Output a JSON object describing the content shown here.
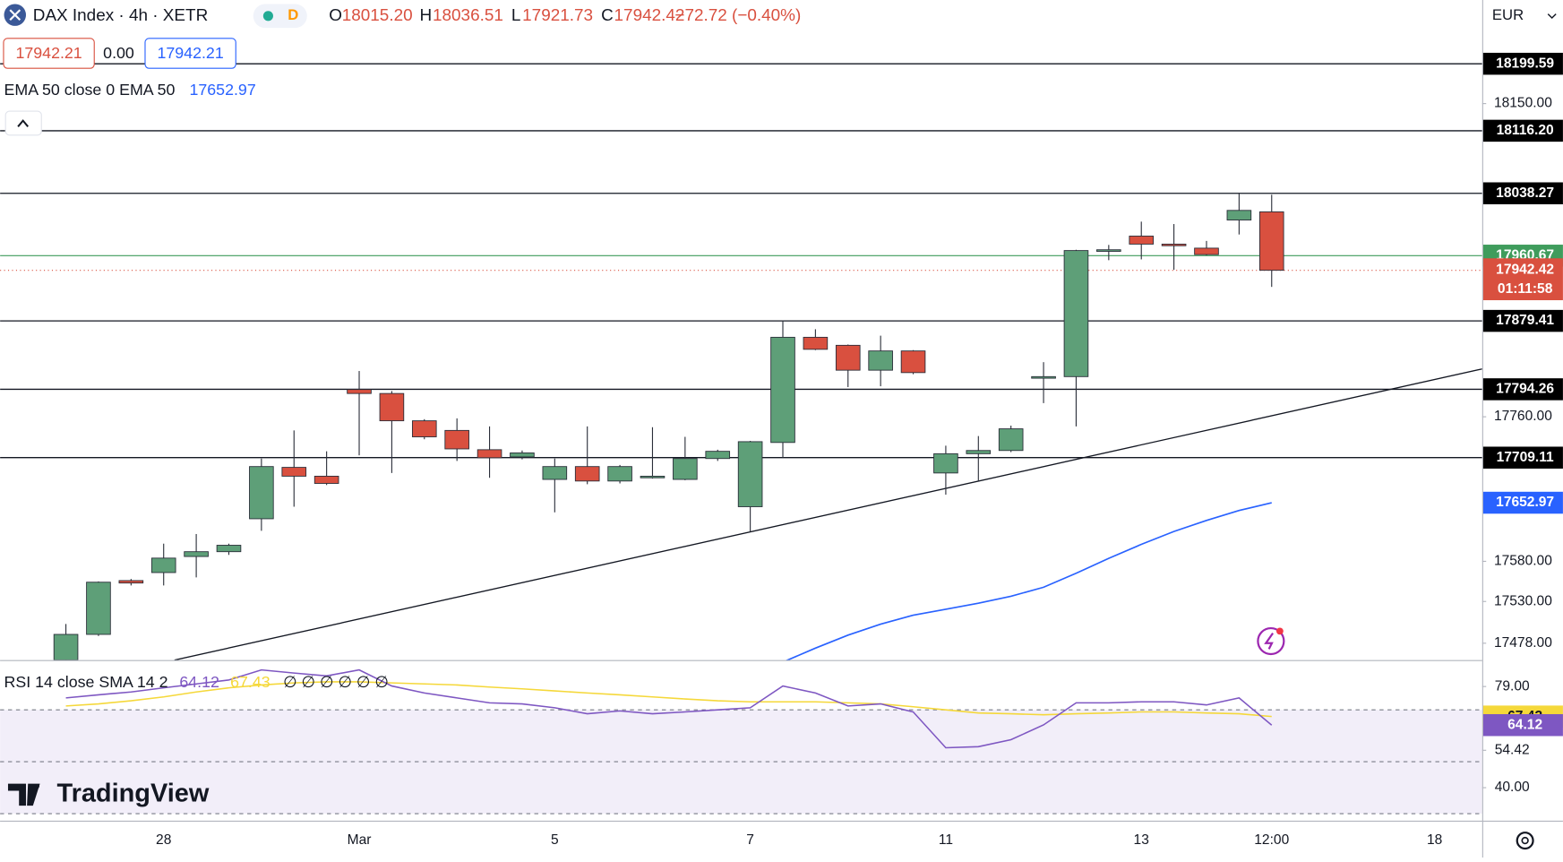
{
  "header": {
    "symbol": "DAX Index · 4h · XETR",
    "badge": "D",
    "ohlc": [
      {
        "label": "O",
        "value": "18015.20"
      },
      {
        "label": "H",
        "value": "18036.51"
      },
      {
        "label": "L",
        "value": "17921.73"
      },
      {
        "label": "C",
        "value": "17942.42"
      }
    ],
    "change": "−72.72 (−0.40%)",
    "sell": "17942.21",
    "spread": "0.00",
    "buy": "17942.21",
    "currency": "EUR",
    "logo": "TradingView"
  },
  "chart_data": [
    {
      "type": "candlestick",
      "up_color": "#5e9f78",
      "down_color": "#d9503f",
      "wick_color": "#2a2e39",
      "open": [
        17457,
        17489,
        17556,
        17566,
        17586,
        17592,
        17633,
        17697,
        17686,
        17794,
        17789,
        17755,
        17743,
        17719,
        17710,
        17682,
        17698,
        17680,
        17684,
        17682,
        17708,
        17648,
        17728,
        17859,
        17849,
        17818,
        17842,
        17690,
        17714,
        17718,
        17808,
        17810,
        17966,
        17985,
        17975,
        17970,
        18005,
        18015.2
      ],
      "high": [
        17502,
        17555,
        17558,
        17602,
        17614,
        17602,
        17708,
        17743,
        17717,
        17817,
        17792,
        17757,
        17758,
        17748,
        17718,
        17708,
        17748,
        17700,
        17747,
        17735,
        17719,
        17730,
        17880,
        17869,
        17850,
        17861,
        17843,
        17724,
        17736,
        17749,
        17828,
        17968,
        17974,
        18003,
        18000,
        17979,
        18039,
        18036.51
      ],
      "low": [
        17445,
        17487,
        17550,
        17550,
        17560,
        17588,
        17618,
        17648,
        17675,
        17712,
        17690,
        17732,
        17705,
        17684,
        17707,
        17641,
        17676,
        17677,
        17683,
        17681,
        17705,
        17617,
        17709,
        17843,
        17797,
        17798,
        17813,
        17663,
        17680,
        17716,
        17777,
        17748,
        17955,
        17956,
        17943,
        17961,
        17987,
        17921.73
      ],
      "close": [
        17489,
        17554,
        17553,
        17584,
        17592,
        17600,
        17698,
        17686,
        17677,
        17789,
        17755,
        17735,
        17720,
        17709,
        17715,
        17698,
        17680,
        17698,
        17686,
        17708,
        17717,
        17729,
        17859,
        17844,
        17818,
        17842,
        17815,
        17714,
        17718,
        17745,
        17810,
        17967,
        17968,
        17975,
        17973,
        17962,
        18017,
        17942.42
      ],
      "countdown": "01:11:58",
      "line_level": 17960.67,
      "line_level_color": "#3f9c5c",
      "levels": [
        18199.59,
        {
          "value": 18116.2,
          "label": "18116.20"
        },
        18038.27,
        17879.41,
        17794.26,
        17709.11
      ],
      "ema": {
        "label": "EMA 50 close 0 EMA 50",
        "color": "#2962ff",
        "values": [
          null,
          null,
          null,
          null,
          null,
          null,
          null,
          null,
          null,
          null,
          null,
          null,
          null,
          null,
          null,
          null,
          null,
          null,
          null,
          null,
          null,
          null,
          17454.5,
          17471.9,
          17488.1,
          17501.7,
          17512.9,
          17520.3,
          17527.8,
          17536.5,
          17547.7,
          17565.1,
          17583.7,
          17601.1,
          17617.2,
          17630.9,
          17643.3,
          17652.97
        ]
      },
      "xlim": [
        -2.02,
        43.46
      ],
      "xticks": [
        {
          "value": 3,
          "label": "28"
        },
        {
          "value": 9,
          "label": "Mar"
        },
        {
          "value": 15,
          "label": "5"
        },
        {
          "value": 21,
          "label": "7"
        },
        {
          "value": 27,
          "label": "11"
        },
        {
          "value": 33,
          "label": "13"
        },
        {
          "value": 37,
          "label": "12:00"
        },
        {
          "value": 42,
          "label": "18"
        }
      ],
      "ylim": [
        17457,
        18279
      ],
      "yticks": [
        {
          "value": 18150,
          "label": "18150.00"
        },
        {
          "value": 17760,
          "label": "17760.00"
        },
        {
          "value": 17580,
          "label": "17580.00"
        },
        {
          "value": 17530,
          "label": "17530.00"
        },
        {
          "value": 17478,
          "label": "17478.00"
        }
      ]
    },
    {
      "type": "line",
      "title": "RSI 14 close SMA 14 2",
      "extra": "∅ ∅ ∅ ∅ ∅ ∅",
      "rsi": {
        "color": "#7e57c2",
        "values": [
          74.6,
          75.8,
          76.9,
          78.5,
          80,
          81.5,
          85.4,
          84.2,
          83.1,
          85.4,
          79.2,
          76.5,
          74.6,
          72.7,
          72.3,
          70.8,
          68.5,
          69.6,
          68.5,
          69.2,
          70,
          70.8,
          79.2,
          76.5,
          71.5,
          72.3,
          69.2,
          55.4,
          55.8,
          58.5,
          64.2,
          72.7,
          72.7,
          73.1,
          73.1,
          71.9,
          74.6,
          64.12
        ]
      },
      "sma": {
        "color": "#f5d83a",
        "values": [
          71.5,
          72.3,
          73.5,
          75,
          76.9,
          78.5,
          79.6,
          80.4,
          80.8,
          80.8,
          80.4,
          80,
          79.6,
          78.8,
          78.1,
          77.3,
          76.5,
          75.8,
          75,
          74.2,
          73.5,
          73.1,
          73.1,
          73.1,
          72.7,
          72.3,
          71.2,
          70,
          68.8,
          68.5,
          68.1,
          68.5,
          68.8,
          69.2,
          69.2,
          68.8,
          68.5,
          67.43
        ]
      },
      "hlines": [
        70,
        50,
        30
      ],
      "ylim": [
        27.3,
        88.8
      ],
      "yticks": [
        {
          "value": 79,
          "label": "79.00"
        },
        {
          "value": 54.42,
          "label": "54.42"
        },
        {
          "value": 40,
          "label": "40.00"
        }
      ]
    }
  ]
}
